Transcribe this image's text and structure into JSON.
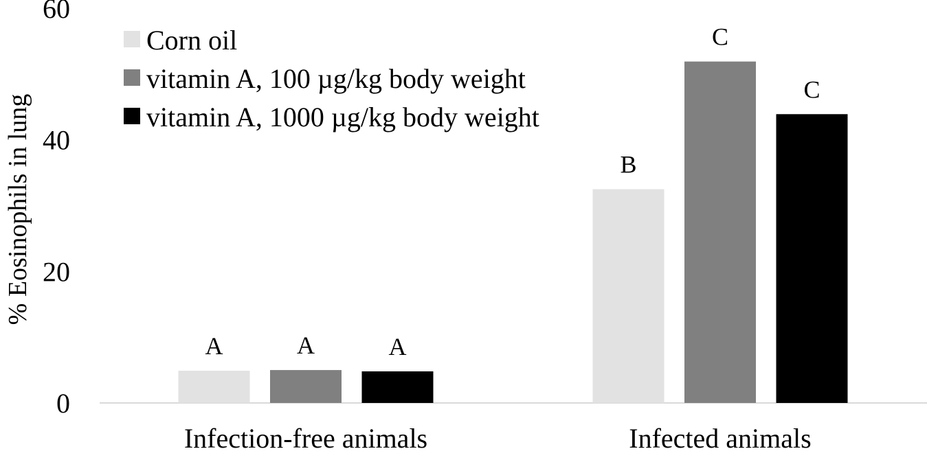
{
  "chart_data": {
    "type": "bar",
    "title": "",
    "xlabel": "",
    "ylabel": "% Eosinophils in lung",
    "ylim": [
      0,
      60
    ],
    "yticks": [
      0,
      20,
      40,
      60
    ],
    "grid": false,
    "legend_position": "top-left",
    "categories": [
      "Infection-free animals",
      "Infected animals"
    ],
    "series": [
      {
        "name": "Corn oil",
        "color": "#e2e2e2",
        "values": [
          4.9,
          32.5
        ],
        "labels": [
          "A",
          "B"
        ]
      },
      {
        "name": "vitamin A, 100 µg/kg body weight",
        "color": "#808080",
        "values": [
          5.0,
          51.9
        ],
        "labels": [
          "A",
          "C"
        ]
      },
      {
        "name": "vitamin A, 1000 µg/kg body weight",
        "color": "#000000",
        "values": [
          4.8,
          43.9
        ],
        "labels": [
          "A",
          "C"
        ]
      }
    ]
  }
}
